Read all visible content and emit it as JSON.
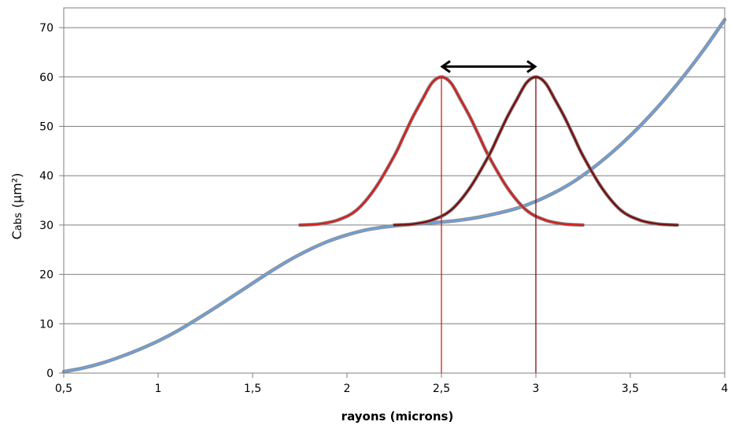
{
  "chart_data": {
    "type": "line",
    "title": "",
    "xlabel": "rayons (microns)",
    "ylabel": {
      "main": "C",
      "sub": "abs",
      "unit": "(µm²)"
    },
    "xlim": [
      0.5,
      4
    ],
    "ylim": [
      0,
      72
    ],
    "x_ticks": [
      "0,5",
      "1",
      "1,5",
      "2",
      "2,5",
      "3",
      "3,5",
      "4"
    ],
    "y_ticks": [
      "0",
      "10",
      "20",
      "30",
      "40",
      "50",
      "60",
      "70"
    ],
    "grid": "horizontal",
    "legend": "none",
    "series": [
      {
        "color": "#6fa0dc",
        "x": [
          0.5,
          0.6,
          0.7,
          0.8,
          0.9,
          1.0,
          1.1,
          1.2,
          1.3,
          1.4,
          1.5,
          1.6,
          1.7,
          1.8,
          1.9,
          2.0,
          2.1,
          2.2,
          2.3,
          2.4,
          2.5,
          2.6,
          2.7,
          2.8,
          2.9,
          3.0,
          3.1,
          3.2,
          3.3,
          3.4,
          3.5,
          3.6,
          3.7,
          3.8,
          3.9,
          4.0
        ],
        "values": [
          0.3,
          1.0,
          2.0,
          3.3,
          4.8,
          6.5,
          8.5,
          10.8,
          13.2,
          15.7,
          18.2,
          20.7,
          23.0,
          25.0,
          26.7,
          28.0,
          29.0,
          29.6,
          30.0,
          30.3,
          30.6,
          31.0,
          31.6,
          32.4,
          33.4,
          34.8,
          36.6,
          38.8,
          41.5,
          44.6,
          48.1,
          52.0,
          56.3,
          61.0,
          66.1,
          71.6
        ]
      },
      {
        "color": "#d42020",
        "x": [
          1.75,
          1.85,
          1.95,
          2.05,
          2.15,
          2.25,
          2.3,
          2.35,
          2.4,
          2.45,
          2.5,
          2.55,
          2.6,
          2.65,
          2.7,
          2.75,
          2.85,
          2.95,
          3.05,
          3.15,
          3.25
        ],
        "values": [
          30.0,
          30.2,
          31.0,
          33.0,
          37.5,
          44.0,
          48.0,
          52.0,
          55.5,
          58.8,
          60.0,
          58.8,
          55.5,
          52.0,
          48.0,
          44.0,
          37.5,
          33.0,
          31.0,
          30.2,
          30.0
        ]
      },
      {
        "color": "#7a1010",
        "x": [
          2.25,
          2.35,
          2.45,
          2.55,
          2.65,
          2.75,
          2.8,
          2.85,
          2.9,
          2.95,
          3.0,
          3.05,
          3.1,
          3.15,
          3.2,
          3.25,
          3.35,
          3.45,
          3.55,
          3.65,
          3.75
        ],
        "values": [
          30.0,
          30.2,
          31.0,
          33.0,
          37.5,
          44.0,
          48.0,
          52.0,
          55.5,
          58.8,
          60.0,
          58.8,
          55.5,
          52.0,
          48.0,
          44.0,
          37.5,
          33.0,
          31.0,
          30.2,
          30.0
        ]
      }
    ],
    "vertical_markers": [
      {
        "x": 2.5,
        "y_top": 60,
        "color": "#d42020"
      },
      {
        "x": 3.0,
        "y_top": 60,
        "color": "#7a1010"
      }
    ],
    "annotations": [
      {
        "type": "double-arrow",
        "x_from": 2.5,
        "x_to": 3.0,
        "y": 62.1,
        "color": "#000000"
      }
    ]
  }
}
